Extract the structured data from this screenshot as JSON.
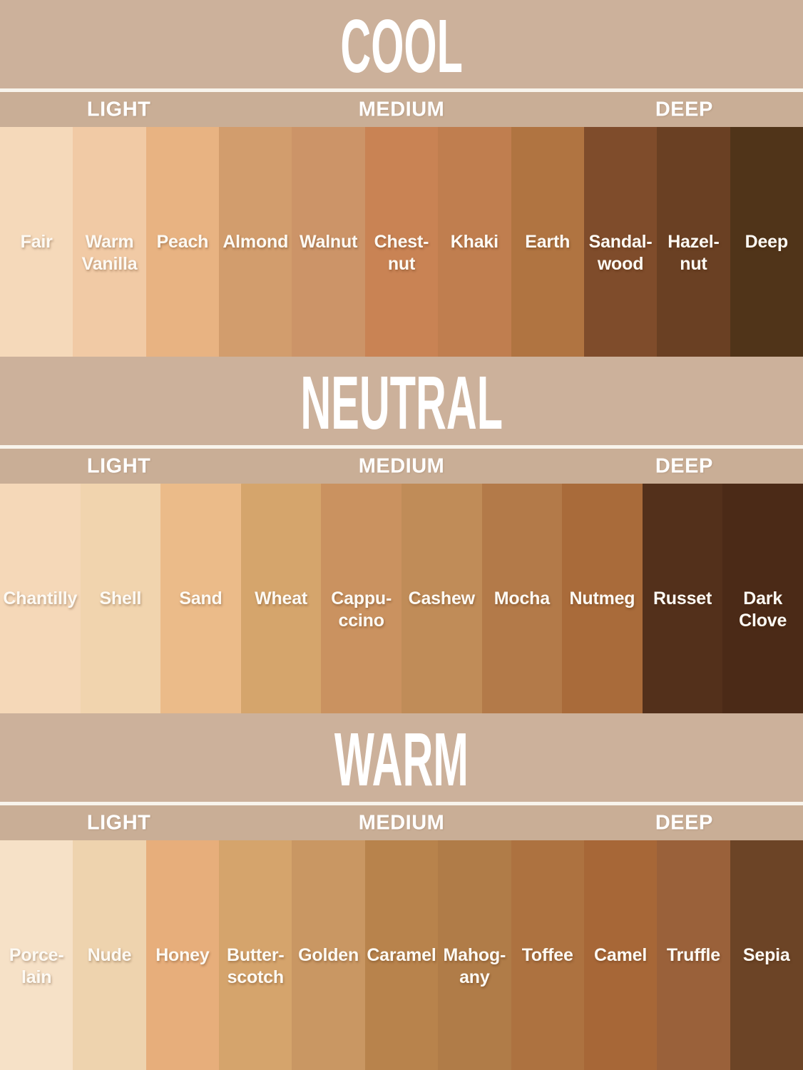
{
  "palette": {
    "banner_bg": "#ccb19b",
    "band_bg": "#c9ae96",
    "divider": "#f8f4ec",
    "title_text": "#ffffff",
    "label_text": "#fdfaf4"
  },
  "chart_data": {
    "type": "table",
    "sections": [
      {
        "title": "COOL",
        "columns": [
          "LIGHT",
          "MEDIUM",
          "DEEP"
        ],
        "swatches": [
          {
            "name": "Fair",
            "color": "#f5d9ba"
          },
          {
            "name": "Warm\nVanilla",
            "color": "#f1caa5"
          },
          {
            "name": "Peach",
            "color": "#e8b382"
          },
          {
            "name": "Almond",
            "color": "#d29d6d"
          },
          {
            "name": "Walnut",
            "color": "#cc9468"
          },
          {
            "name": "Chest-\nnut",
            "color": "#c98354"
          },
          {
            "name": "Khaki",
            "color": "#c07e4f"
          },
          {
            "name": "Earth",
            "color": "#b07441"
          },
          {
            "name": "Sandal-\nwood",
            "color": "#7f4c2b"
          },
          {
            "name": "Hazel-\nnut",
            "color": "#6a4023"
          },
          {
            "name": "Deep",
            "color": "#503419"
          }
        ]
      },
      {
        "title": "NEUTRAL",
        "columns": [
          "LIGHT",
          "MEDIUM",
          "DEEP"
        ],
        "swatches": [
          {
            "name": "Chantilly",
            "color": "#f5d8b8"
          },
          {
            "name": "Shell",
            "color": "#f1d4ae"
          },
          {
            "name": "Sand",
            "color": "#ebbb89"
          },
          {
            "name": "Wheat",
            "color": "#d5a56c"
          },
          {
            "name": "Cappu-\nccino",
            "color": "#ca9260"
          },
          {
            "name": "Cashew",
            "color": "#c08c58"
          },
          {
            "name": "Mocha",
            "color": "#b37a49"
          },
          {
            "name": "Nutmeg",
            "color": "#a96b3a"
          },
          {
            "name": "Russet",
            "color": "#53301b"
          },
          {
            "name": "Dark\nClove",
            "color": "#4b2a17"
          }
        ]
      },
      {
        "title": "WARM",
        "columns": [
          "LIGHT",
          "MEDIUM",
          "DEEP"
        ],
        "swatches": [
          {
            "name": "Porce-\nlain",
            "color": "#f6e1c7"
          },
          {
            "name": "Nude",
            "color": "#eed3ae"
          },
          {
            "name": "Honey",
            "color": "#e7ae7b"
          },
          {
            "name": "Butter-\nscotch",
            "color": "#d5a46c"
          },
          {
            "name": "Golden",
            "color": "#c99763"
          },
          {
            "name": "Caramel",
            "color": "#b8834c"
          },
          {
            "name": "Mahog-\nany",
            "color": "#b07c48"
          },
          {
            "name": "Toffee",
            "color": "#ad7240"
          },
          {
            "name": "Camel",
            "color": "#a76737"
          },
          {
            "name": "Truffle",
            "color": "#9a613a"
          },
          {
            "name": "Sepia",
            "color": "#6c4426"
          }
        ]
      }
    ]
  }
}
